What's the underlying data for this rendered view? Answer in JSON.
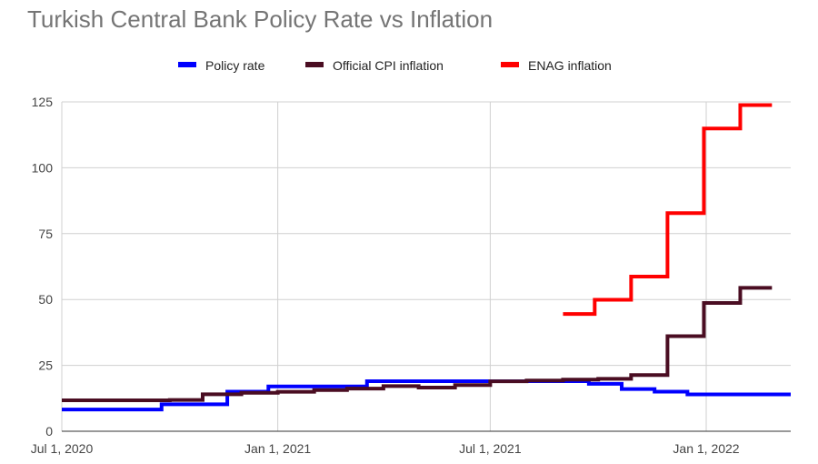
{
  "chart_data": {
    "type": "line",
    "title": "Turkish Central Bank Policy Rate vs Inflation",
    "xlabel": "",
    "ylabel": "",
    "ylim": [
      0,
      125
    ],
    "y_ticks": [
      "0",
      "25",
      "50",
      "75",
      "100",
      "125"
    ],
    "x_range": [
      "2020-07-01",
      "2022-03-14"
    ],
    "x_ticks": [
      {
        "date": "2020-07-01",
        "label": "Jul 1, 2020"
      },
      {
        "date": "2021-01-01",
        "label": "Jan 1, 2021"
      },
      {
        "date": "2021-07-01",
        "label": "Jul 1, 2021"
      },
      {
        "date": "2022-01-01",
        "label": "Jan 1, 2022"
      }
    ],
    "grid": true,
    "legend_position": "top",
    "stepped": true,
    "series": [
      {
        "name": "Policy rate",
        "color": "#0000ff",
        "end": "2022-03-14",
        "points": [
          [
            "2020-07-01",
            8.25
          ],
          [
            "2020-09-24",
            10.25
          ],
          [
            "2020-11-19",
            15
          ],
          [
            "2020-12-24",
            17
          ],
          [
            "2021-03-18",
            19
          ],
          [
            "2021-09-23",
            18
          ],
          [
            "2021-10-21",
            16
          ],
          [
            "2021-11-18",
            15
          ],
          [
            "2021-12-16",
            14
          ]
        ]
      },
      {
        "name": "Official CPI inflation",
        "color": "#4a0d22",
        "end": "2022-02-26",
        "points": [
          [
            "2020-07-01",
            11.76
          ],
          [
            "2020-10-01",
            11.89
          ],
          [
            "2020-10-29",
            14.03
          ],
          [
            "2020-12-01",
            14.6
          ],
          [
            "2021-01-01",
            14.97
          ],
          [
            "2021-02-01",
            15.61
          ],
          [
            "2021-03-01",
            16.19
          ],
          [
            "2021-04-01",
            17.14
          ],
          [
            "2021-05-01",
            16.59
          ],
          [
            "2021-06-01",
            17.53
          ],
          [
            "2021-07-01",
            18.95
          ],
          [
            "2021-08-01",
            19.25
          ],
          [
            "2021-09-01",
            19.58
          ],
          [
            "2021-10-01",
            19.89
          ],
          [
            "2021-10-29",
            21.31
          ],
          [
            "2021-11-29",
            36.08
          ],
          [
            "2021-12-30",
            48.69
          ],
          [
            "2022-01-30",
            54.44
          ]
        ]
      },
      {
        "name": "ENAG inflation",
        "color": "#ff0000",
        "end": "2022-02-26",
        "points": [
          [
            "2021-09-01",
            44.5
          ],
          [
            "2021-09-28",
            49.9
          ],
          [
            "2021-10-29",
            58.7
          ],
          [
            "2021-11-29",
            82.8
          ],
          [
            "2021-12-30",
            114.9
          ],
          [
            "2022-01-30",
            123.8
          ]
        ]
      }
    ]
  }
}
